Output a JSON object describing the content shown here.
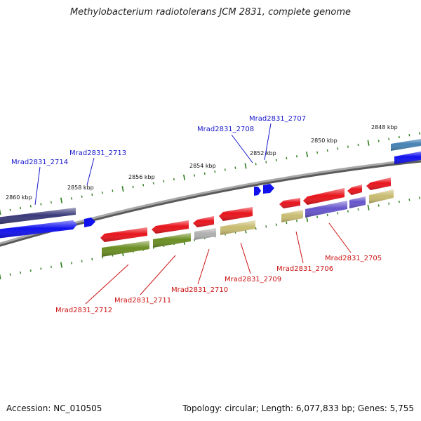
{
  "title": "Methylobacterium radiotolerans JCM 2831, complete genome",
  "footer": {
    "accession": "Accession: NC_010505",
    "summary": "Topology: circular; Length: 6,077,833 bp; Genes: 5,755"
  },
  "scale_labels": [
    "2860 kbp",
    "2858 kbp",
    "2856 kbp",
    "2854 kbp",
    "2852 kbp",
    "2850 kbp",
    "2848 kbp"
  ],
  "gene_labels_forward": [
    "Mrad2831_2714",
    "Mrad2831_2713",
    "Mrad2831_2708",
    "Mrad2831_2707"
  ],
  "gene_labels_reverse": [
    "Mrad2831_2712",
    "Mrad2831_2711",
    "Mrad2831_2710",
    "Mrad2831_2709",
    "Mrad2831_2706",
    "Mrad2831_2705"
  ],
  "colors": {
    "forward_label": "#1a1acc",
    "reverse_label": "#cc1111",
    "backbone": "#8a8a8a",
    "tick": "#2e7d1e",
    "gene_red": "#e8141c",
    "gene_blue": "#1111ee",
    "gene_olive": "#6b8e23",
    "gene_khaki": "#c8bc70",
    "gene_gray": "#b0b0b0",
    "gene_slate": "#6655cc",
    "gene_navy": "#3a3a7a",
    "gene_steel": "#4682b4"
  }
}
